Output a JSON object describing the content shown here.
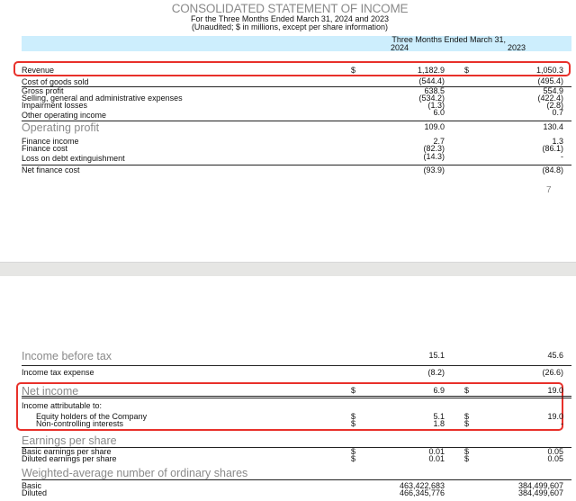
{
  "header": {
    "title": "CONSOLIDATED STATEMENT OF INCOME",
    "subtitle": "For the Three Months Ended March 31, 2024 and 2023",
    "note": "(Unaudited; $ in millions, except per share information)",
    "period_label": "Three Months Ended March 31,",
    "year_1": "2024",
    "year_2": "2023"
  },
  "page_number": "7",
  "rows": [
    {
      "label": "Revenue",
      "d1": "$",
      "v1": "1,182.9",
      "d2": "$",
      "v2": "1,050.3"
    },
    {
      "label": "Cost of goods sold",
      "v1": "(544.4)",
      "v2": "(495.4)"
    },
    {
      "label": "Gross profit",
      "v1": "638.5",
      "v2": "554.9"
    },
    {
      "label": "Selling, general and administrative expenses",
      "v1": "(534.2)",
      "v2": "(422.4)"
    },
    {
      "label": "Impairment losses",
      "v1": "(1.3)",
      "v2": "(2.8)"
    },
    {
      "label": "Other operating income",
      "v1": "6.0",
      "v2": "0.7"
    },
    {
      "label": "Operating profit",
      "v1": "109.0",
      "v2": "130.4"
    },
    {
      "label": "Finance income",
      "v1": "2.7",
      "v2": "1.3"
    },
    {
      "label": "Finance cost",
      "v1": "(82.3)",
      "v2": "(86.1)"
    },
    {
      "label": "Loss on debt extinguishment",
      "v1": "(14.3)",
      "v2": "-"
    },
    {
      "label": "Net finance cost",
      "v1": "(93.9)",
      "v2": "(84.8)"
    },
    {
      "label": "Income before tax",
      "v1": "15.1",
      "v2": "45.6"
    },
    {
      "label": "Income tax expense",
      "v1": "(8.2)",
      "v2": "(26.6)"
    },
    {
      "label": "Net income",
      "d1": "$",
      "v1": "6.9",
      "d2": "$",
      "v2": "19.0"
    },
    {
      "label": "Income attributable to:"
    },
    {
      "label": "Equity holders of the Company",
      "d1": "$",
      "v1": "5.1",
      "d2": "$",
      "v2": "19.0"
    },
    {
      "label": "Non-controlling interests",
      "d1": "$",
      "v1": "1.8",
      "d2": "$",
      "v2": "-"
    },
    {
      "label": "Earnings per share"
    },
    {
      "label": "Basic earnings per share",
      "d1": "$",
      "v1": "0.01",
      "d2": "$",
      "v2": "0.05"
    },
    {
      "label": "Diluted earnings per share",
      "d1": "$",
      "v1": "0.01",
      "d2": "$",
      "v2": "0.05"
    },
    {
      "label": "Weighted-average number of ordinary shares"
    },
    {
      "label": "Basic",
      "v1": "463,422,683",
      "v2": "384,499,607"
    },
    {
      "label": "Diluted",
      "v1": "466,345,776",
      "v2": "384,499,607"
    }
  ],
  "highlight_color": "#e8302a",
  "header_band_color": "#cdeefd"
}
